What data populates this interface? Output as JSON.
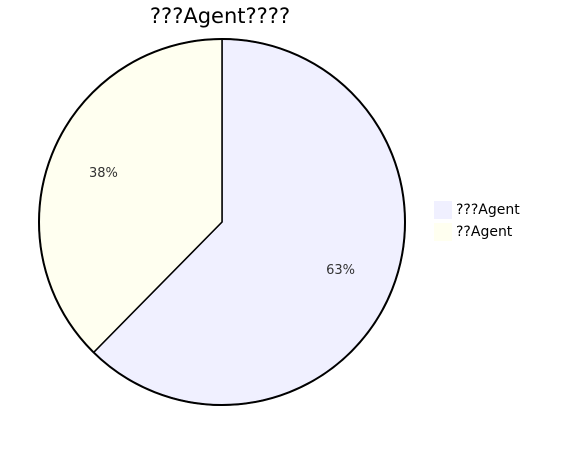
{
  "chart_data": {
    "type": "pie",
    "title": "???Agent????",
    "slices": [
      {
        "name": "???Agent",
        "value": 63,
        "label": "63%",
        "color": "#f0f0ff"
      },
      {
        "name": "??Agent",
        "value": 38,
        "label": "38%",
        "color": "#fffff0"
      }
    ],
    "legend_position": "right",
    "start_angle": "top",
    "direction": "clockwise",
    "outline_color": "#000000"
  }
}
